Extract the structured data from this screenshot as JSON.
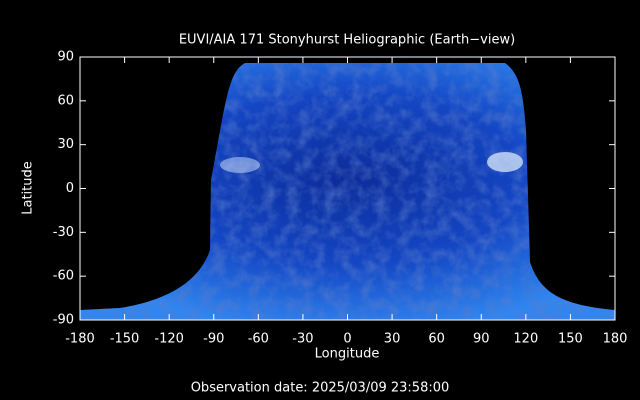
{
  "chart_data": {
    "type": "image",
    "title": "EUVI/AIA 171 Stonyhurst Heliographic (Earth−view)",
    "x_label": "Longitude",
    "y_label": "Latitude",
    "xlim": [
      -180,
      180
    ],
    "ylim": [
      -90,
      90
    ],
    "xticks": [
      -180,
      -150,
      -120,
      -90,
      -60,
      -30,
      0,
      30,
      60,
      90,
      120,
      150,
      180
    ],
    "yticks": [
      -90,
      -60,
      -30,
      0,
      30,
      60,
      90
    ]
  },
  "footer": "Observation date: 2025/03/09 23:58:00"
}
